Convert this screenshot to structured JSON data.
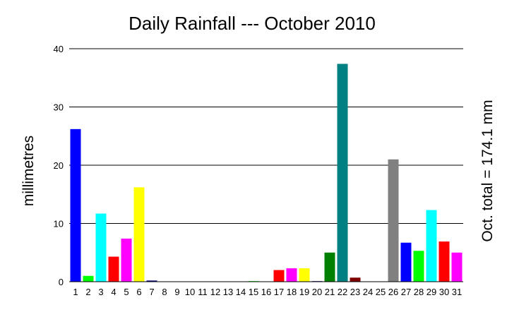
{
  "chart_data": {
    "type": "bar",
    "title": "Daily Rainfall --- October 2010",
    "ylabel": "millimetres",
    "xlabel": "",
    "annotation": "Oct. total = 174.1 mm",
    "ylim": [
      0,
      40
    ],
    "yticks": [
      "0",
      "10",
      "20",
      "30",
      "40"
    ],
    "grid": true,
    "categories": [
      "1",
      "2",
      "3",
      "4",
      "5",
      "6",
      "7",
      "8",
      "9",
      "10",
      "11",
      "12",
      "13",
      "14",
      "15",
      "16",
      "17",
      "18",
      "19",
      "20",
      "21",
      "22",
      "23",
      "24",
      "25",
      "26",
      "27",
      "28",
      "29",
      "30",
      "31"
    ],
    "values": [
      26.2,
      1.0,
      11.7,
      4.3,
      7.4,
      16.2,
      0.2,
      0,
      0,
      0,
      0,
      0,
      0,
      0,
      0.1,
      0,
      2.0,
      2.3,
      2.3,
      0.1,
      5.0,
      37.4,
      0.7,
      0,
      0,
      21.0,
      6.7,
      5.3,
      12.3,
      6.9,
      5.0
    ],
    "colors": [
      "#0000ff",
      "#00ff00",
      "#00ffff",
      "#ff0000",
      "#ff00ff",
      "#ffff00",
      "#000080",
      "#008000",
      "#008080",
      "#800000",
      "#800080",
      "#808000",
      "#808080",
      "#0000ff",
      "#00ff00",
      "#00ffff",
      "#ff0000",
      "#ff00ff",
      "#ffff00",
      "#000080",
      "#008000",
      "#008080",
      "#800000",
      "#800080",
      "#808000",
      "#808080",
      "#0000ff",
      "#00ff00",
      "#00ffff",
      "#ff0000",
      "#ff00ff"
    ]
  }
}
